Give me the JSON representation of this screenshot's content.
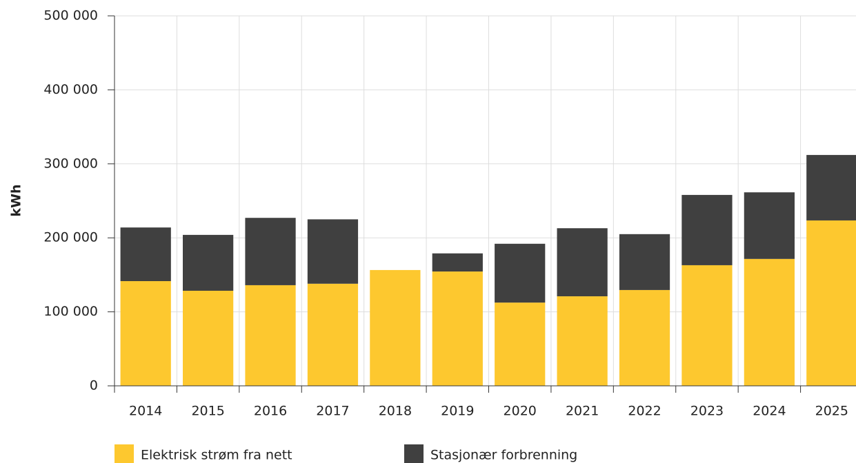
{
  "chart_data": {
    "type": "stacked_bar",
    "y_label": "kWh",
    "categories": [
      "2014",
      "2015",
      "2016",
      "2017",
      "2018",
      "2019",
      "2020",
      "2021",
      "2022",
      "2023",
      "2024",
      "2025"
    ],
    "series": [
      {
        "name": "Elektrisk strøm fra nett",
        "color": "#fdc82f",
        "values": [
          141500,
          128500,
          136000,
          138000,
          156500,
          154500,
          112500,
          121000,
          129500,
          163000,
          171500,
          223500
        ]
      },
      {
        "name": "Stasjonær forbrenning",
        "color": "#404040",
        "values": [
          72500,
          75500,
          91000,
          87000,
          0,
          24500,
          79500,
          92000,
          75500,
          95000,
          90000,
          88500
        ]
      }
    ],
    "ylim": [
      0,
      500000
    ],
    "yticks": [
      0,
      {
        "value": 100000,
        "label": "100 000"
      },
      {
        "value": 200000,
        "label": "200 000"
      },
      {
        "value": 300000,
        "label": "300 000"
      },
      {
        "value": 400000,
        "label": "400 000"
      },
      {
        "value": 500000,
        "label": "500 000"
      }
    ],
    "grid": true,
    "legend": "bottom"
  }
}
